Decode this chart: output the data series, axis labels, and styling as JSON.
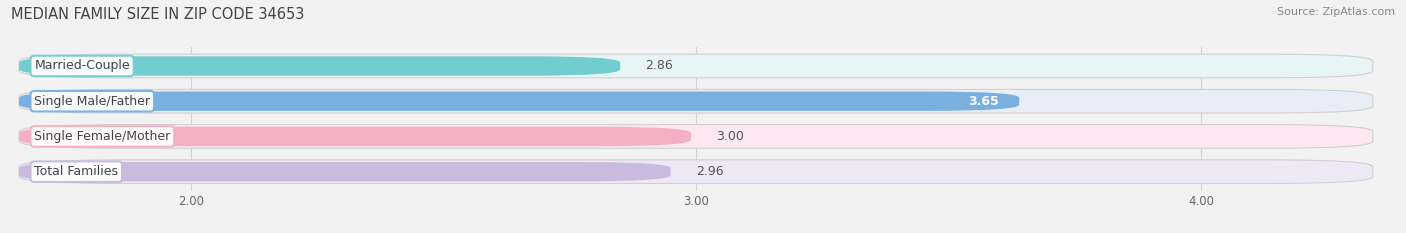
{
  "title": "MEDIAN FAMILY SIZE IN ZIP CODE 34653",
  "source": "Source: ZipAtlas.com",
  "categories": [
    "Married-Couple",
    "Single Male/Father",
    "Single Female/Mother",
    "Total Families"
  ],
  "values": [
    2.86,
    3.65,
    3.0,
    2.96
  ],
  "bar_colors": [
    "#72cdd1",
    "#7ab0e0",
    "#f4afc4",
    "#c9bade"
  ],
  "bar_bg_colors": [
    "#e8f5f5",
    "#e8eef8",
    "#fce8f0",
    "#ede8f5"
  ],
  "label_border_colors": [
    "#72cdd1",
    "#7ab0e0",
    "#f4afc4",
    "#c9bade"
  ],
  "value_labels": [
    "2.86",
    "3.65",
    "3.00",
    "2.96"
  ],
  "value_inside": [
    false,
    true,
    false,
    false
  ],
  "xlim_left": 1.65,
  "xlim_right": 4.35,
  "xticks": [
    2.0,
    3.0,
    4.0
  ],
  "xtick_labels": [
    "2.00",
    "3.00",
    "4.00"
  ],
  "grid_color": "#cccccc",
  "bg_color": "#f2f2f2",
  "row_bg_color": "#ececec",
  "title_fontsize": 10.5,
  "source_fontsize": 8,
  "label_fontsize": 9,
  "value_fontsize": 9,
  "tick_fontsize": 8.5
}
